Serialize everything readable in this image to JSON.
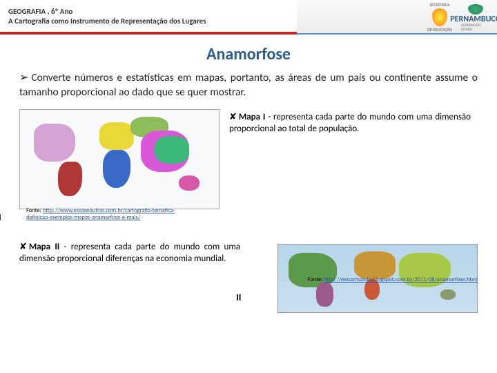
{
  "header": {
    "line1": "GEOGRAFIA , 6º Ano",
    "line2": "A Cartografia como Instrumento de Representação dos Lugares",
    "logo1_top": "SECRETARIA",
    "logo1_bottom": "DE EDUCAÇÃO",
    "logo2": "PERNAMBUCO",
    "logo2_sub": "GOVERNO DO ESTADO"
  },
  "title": "Anamorfose",
  "intro": "Converte números e estatísticas em mapas, portanto, as áreas de um país ou continente assume o tamanho proporcional ao dado que se quer mostrar.",
  "desc1_bold": "Mapa I",
  "desc1_text": " - representa cada parte do mundo com uma dimensão proporcional ao total de população.",
  "desc2_bold": "Mapa II",
  "desc2_text": " - representa cada parte do mundo com uma dimensão proporcional diferenças na economia mundial.",
  "label_I": "I",
  "label_II": "II",
  "fonte_label": "Fonte: ",
  "fonte1_line1": "http: //www.essaseoutras.com.br/cartografia-tematica-",
  "fonte1_line2": "definicao-exemplos-mapas-anamorfose-e-mais/",
  "fonte2": "http: //eeoarmando.blogspot.com.br/2011/08/anamorfose.html",
  "colors": {
    "title": "#2e5c8a",
    "header_accent": "#c62828",
    "link": "#2a5599",
    "map1_bg": "#f8f9fa",
    "map2_bg": "#c8e0f0"
  },
  "map1": {
    "type": "cartogram",
    "regions": [
      {
        "name": "north-america",
        "color": "#d4a5d4"
      },
      {
        "name": "south-america",
        "color": "#b03838"
      },
      {
        "name": "europe",
        "color": "#e8d838"
      },
      {
        "name": "africa",
        "color": "#3868c8"
      },
      {
        "name": "russia",
        "color": "#8fbc5a"
      },
      {
        "name": "asia",
        "color": "#d858d8"
      },
      {
        "name": "china",
        "color": "#3cb878"
      },
      {
        "name": "oceania",
        "color": "#d858a8"
      }
    ]
  },
  "map2": {
    "type": "cartogram",
    "regions": [
      {
        "name": "north-america",
        "color": "#5a9a4a"
      },
      {
        "name": "south-america",
        "color": "#9a5a8a"
      },
      {
        "name": "europe",
        "color": "#c89838"
      },
      {
        "name": "africa",
        "color": "#c85838"
      },
      {
        "name": "asia",
        "color": "#a8c848"
      },
      {
        "name": "oceania",
        "color": "#8a9a6a"
      }
    ]
  }
}
